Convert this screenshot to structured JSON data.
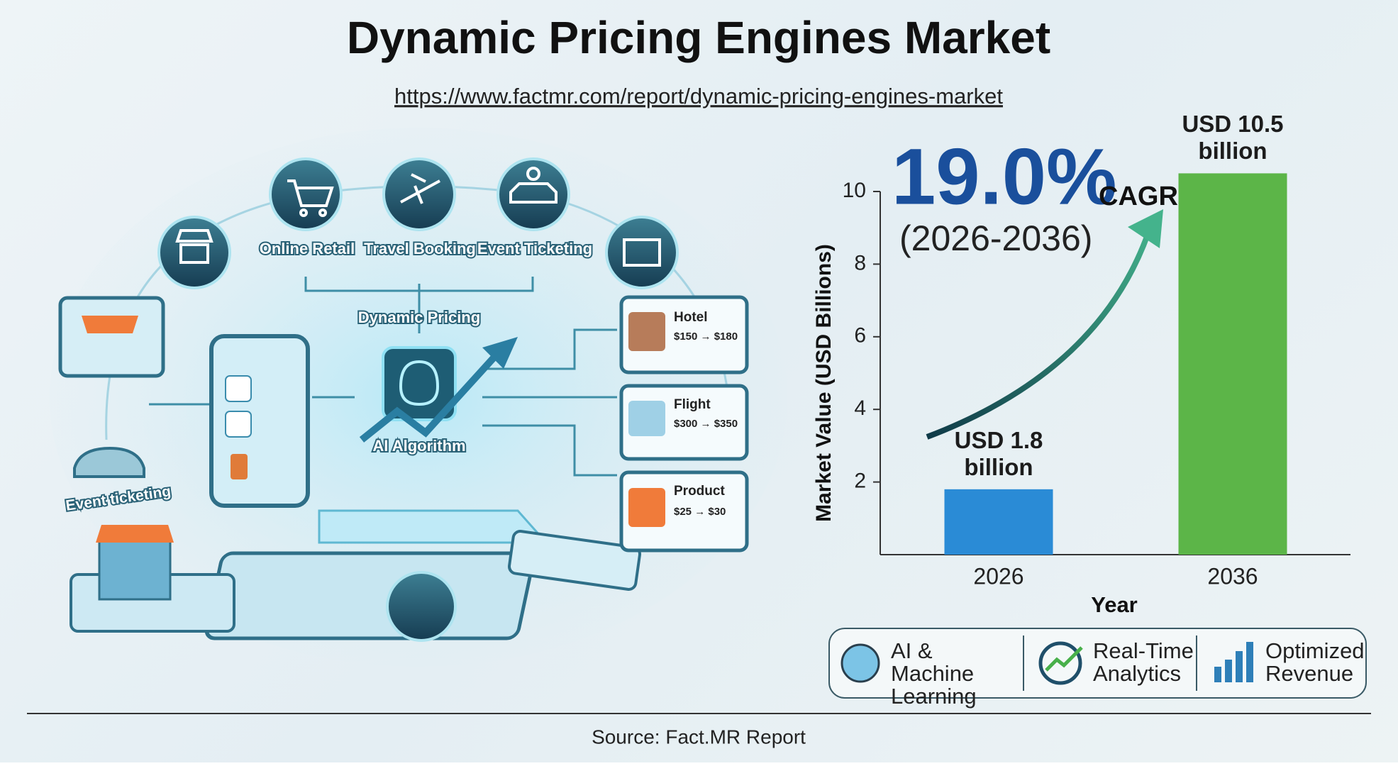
{
  "header": {
    "title": "Dynamic Pricing Engines Market",
    "url": "https://www.factmr.com/report/dynamic-pricing-engines-market"
  },
  "illustration": {
    "channels": [
      "Online Retail",
      "Travel Booking",
      "Event Ticketing"
    ],
    "engine": "Dynamic Pricing",
    "algorithm": "AI Algorithm",
    "side_label": "Event ticketing",
    "cards": [
      {
        "name": "Hotel",
        "price": "$150 → $180"
      },
      {
        "name": "Flight",
        "price": "$300 → $350"
      },
      {
        "name": "Product",
        "price": "$25 → $30"
      }
    ]
  },
  "chart_data": {
    "type": "bar",
    "categories": [
      "2026",
      "2036"
    ],
    "values": [
      1.8,
      10.5
    ],
    "value_labels": [
      "USD 1.8 billion",
      "USD 10.5 billion"
    ],
    "colors": [
      "#2a8bd6",
      "#5cb548"
    ],
    "ylim": [
      0,
      10
    ],
    "yticks": [
      2,
      4,
      6,
      8,
      10
    ],
    "xlabel": "Year",
    "ylabel": "Market Value (USD Billions)",
    "cagr": "19.0%",
    "cagr_label": "CAGR",
    "cagr_period": "(2026-2036)"
  },
  "features": [
    "AI & Machine Learning",
    "Real-Time Analytics",
    "Optimized Revenue"
  ],
  "footer": {
    "source": "Source: Fact.MR Report"
  }
}
